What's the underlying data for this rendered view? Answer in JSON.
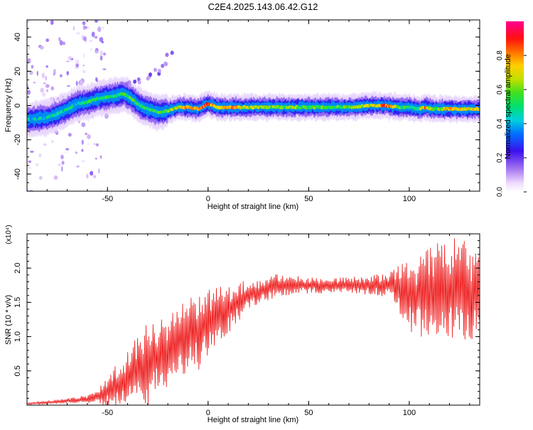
{
  "title": "C2E4.2025.143.06.42.G12",
  "colors": {
    "snr_line": "#ee2222",
    "axis": "#000000",
    "background": "#ffffff"
  },
  "chart_data": [
    {
      "type": "heatmap",
      "xlabel": "Height of straight line (km)",
      "ylabel": "Frequency (Hz)",
      "xlim": [
        -90,
        135
      ],
      "ylim": [
        -50,
        50
      ],
      "x_ticks": [
        -50,
        0,
        50,
        100
      ],
      "y_ticks": [
        -40,
        -20,
        0,
        20,
        40
      ],
      "x_tick_labels": [
        "-50",
        "0",
        "50",
        "100"
      ],
      "y_tick_labels": [
        "-40",
        "-20",
        "0",
        "20",
        "40"
      ],
      "colorbar": {
        "label": "Normalized spectral amplitude",
        "range": [
          0,
          1
        ],
        "ticks": [
          0.0,
          0.2,
          0.4,
          0.6,
          0.8
        ],
        "tick_labels": [
          "0.0",
          "0.2",
          "0.4",
          "0.6",
          "0.8"
        ],
        "colormap": "rainbow-white-to-magenta"
      },
      "ridge": {
        "x": [
          -88,
          -80,
          -75,
          -70,
          -65,
          -60,
          -55,
          -50,
          -45,
          -42,
          -38,
          -34,
          -30,
          -25,
          -20,
          -15,
          -10,
          -5,
          0,
          5,
          10,
          20,
          30,
          40,
          50,
          60,
          70,
          80,
          88,
          95,
          100,
          105,
          108,
          112,
          120,
          128,
          135
        ],
        "frequency": [
          -8,
          -7,
          -5,
          -2,
          1,
          2,
          4,
          5,
          6,
          7,
          4,
          0,
          -2,
          -4,
          -3,
          -1,
          -1,
          -2,
          1,
          -1,
          -1,
          -1,
          -1,
          -1,
          -1,
          -1,
          -1,
          0,
          0,
          -1,
          -1,
          -2,
          -1,
          -2,
          -2,
          -2,
          -2
        ],
        "amplitude": [
          0.4,
          0.45,
          0.5,
          0.45,
          0.45,
          0.5,
          0.55,
          0.55,
          0.5,
          0.5,
          0.55,
          0.5,
          0.5,
          0.5,
          0.55,
          0.7,
          0.8,
          0.75,
          0.9,
          0.7,
          0.8,
          0.65,
          0.6,
          0.6,
          0.55,
          0.55,
          0.6,
          0.65,
          0.85,
          0.55,
          0.5,
          0.5,
          0.8,
          0.55,
          0.75,
          0.7,
          0.7
        ]
      },
      "upper_branch": {
        "x": [
          -40,
          -35,
          -30,
          -25,
          -22,
          -19
        ],
        "frequency": [
          12,
          14,
          17,
          20,
          24,
          30
        ]
      }
    },
    {
      "type": "line",
      "xlabel": "Height of straight line (km)",
      "ylabel": "SNR (10 * v/v)",
      "y_multiplier_label": "(x10⁴)",
      "xlim": [
        -90,
        135
      ],
      "ylim": [
        0,
        2.5
      ],
      "x_ticks": [
        -50,
        0,
        50,
        100
      ],
      "y_ticks": [
        0.5,
        1.0,
        1.5,
        2.0
      ],
      "x_tick_labels": [
        "-50",
        "0",
        "50",
        "100"
      ],
      "y_tick_labels": [
        "0.5",
        "1.0",
        "1.5",
        "2.0"
      ],
      "series": [
        {
          "envelope": {
            "x": [
              -90,
              -80,
              -70,
              -60,
              -55,
              -50,
              -45,
              -40,
              -35,
              -30,
              -25,
              -20,
              -15,
              -10,
              -5,
              0,
              5,
              10,
              15,
              20,
              25,
              30,
              35,
              40,
              50,
              60,
              70,
              80,
              90,
              95,
              100,
              105,
              110,
              115,
              120,
              125,
              130,
              135
            ],
            "mean": [
              0.02,
              0.04,
              0.06,
              0.09,
              0.12,
              0.2,
              0.3,
              0.4,
              0.5,
              0.6,
              0.7,
              0.8,
              0.9,
              1.0,
              1.1,
              1.2,
              1.3,
              1.4,
              1.5,
              1.6,
              1.65,
              1.7,
              1.75,
              1.75,
              1.75,
              1.75,
              1.75,
              1.75,
              1.75,
              1.7,
              1.6,
              1.6,
              1.65,
              1.7,
              1.7,
              1.7,
              1.6,
              1.6
            ],
            "amplitude": [
              0.01,
              0.02,
              0.03,
              0.05,
              0.08,
              0.2,
              0.3,
              0.35,
              0.45,
              0.5,
              0.5,
              0.5,
              0.45,
              0.45,
              0.5,
              0.4,
              0.35,
              0.3,
              0.25,
              0.2,
              0.15,
              0.15,
              0.15,
              0.12,
              0.1,
              0.1,
              0.1,
              0.12,
              0.15,
              0.3,
              0.45,
              0.5,
              0.55,
              0.6,
              0.6,
              0.65,
              0.6,
              0.5
            ]
          }
        }
      ]
    }
  ]
}
